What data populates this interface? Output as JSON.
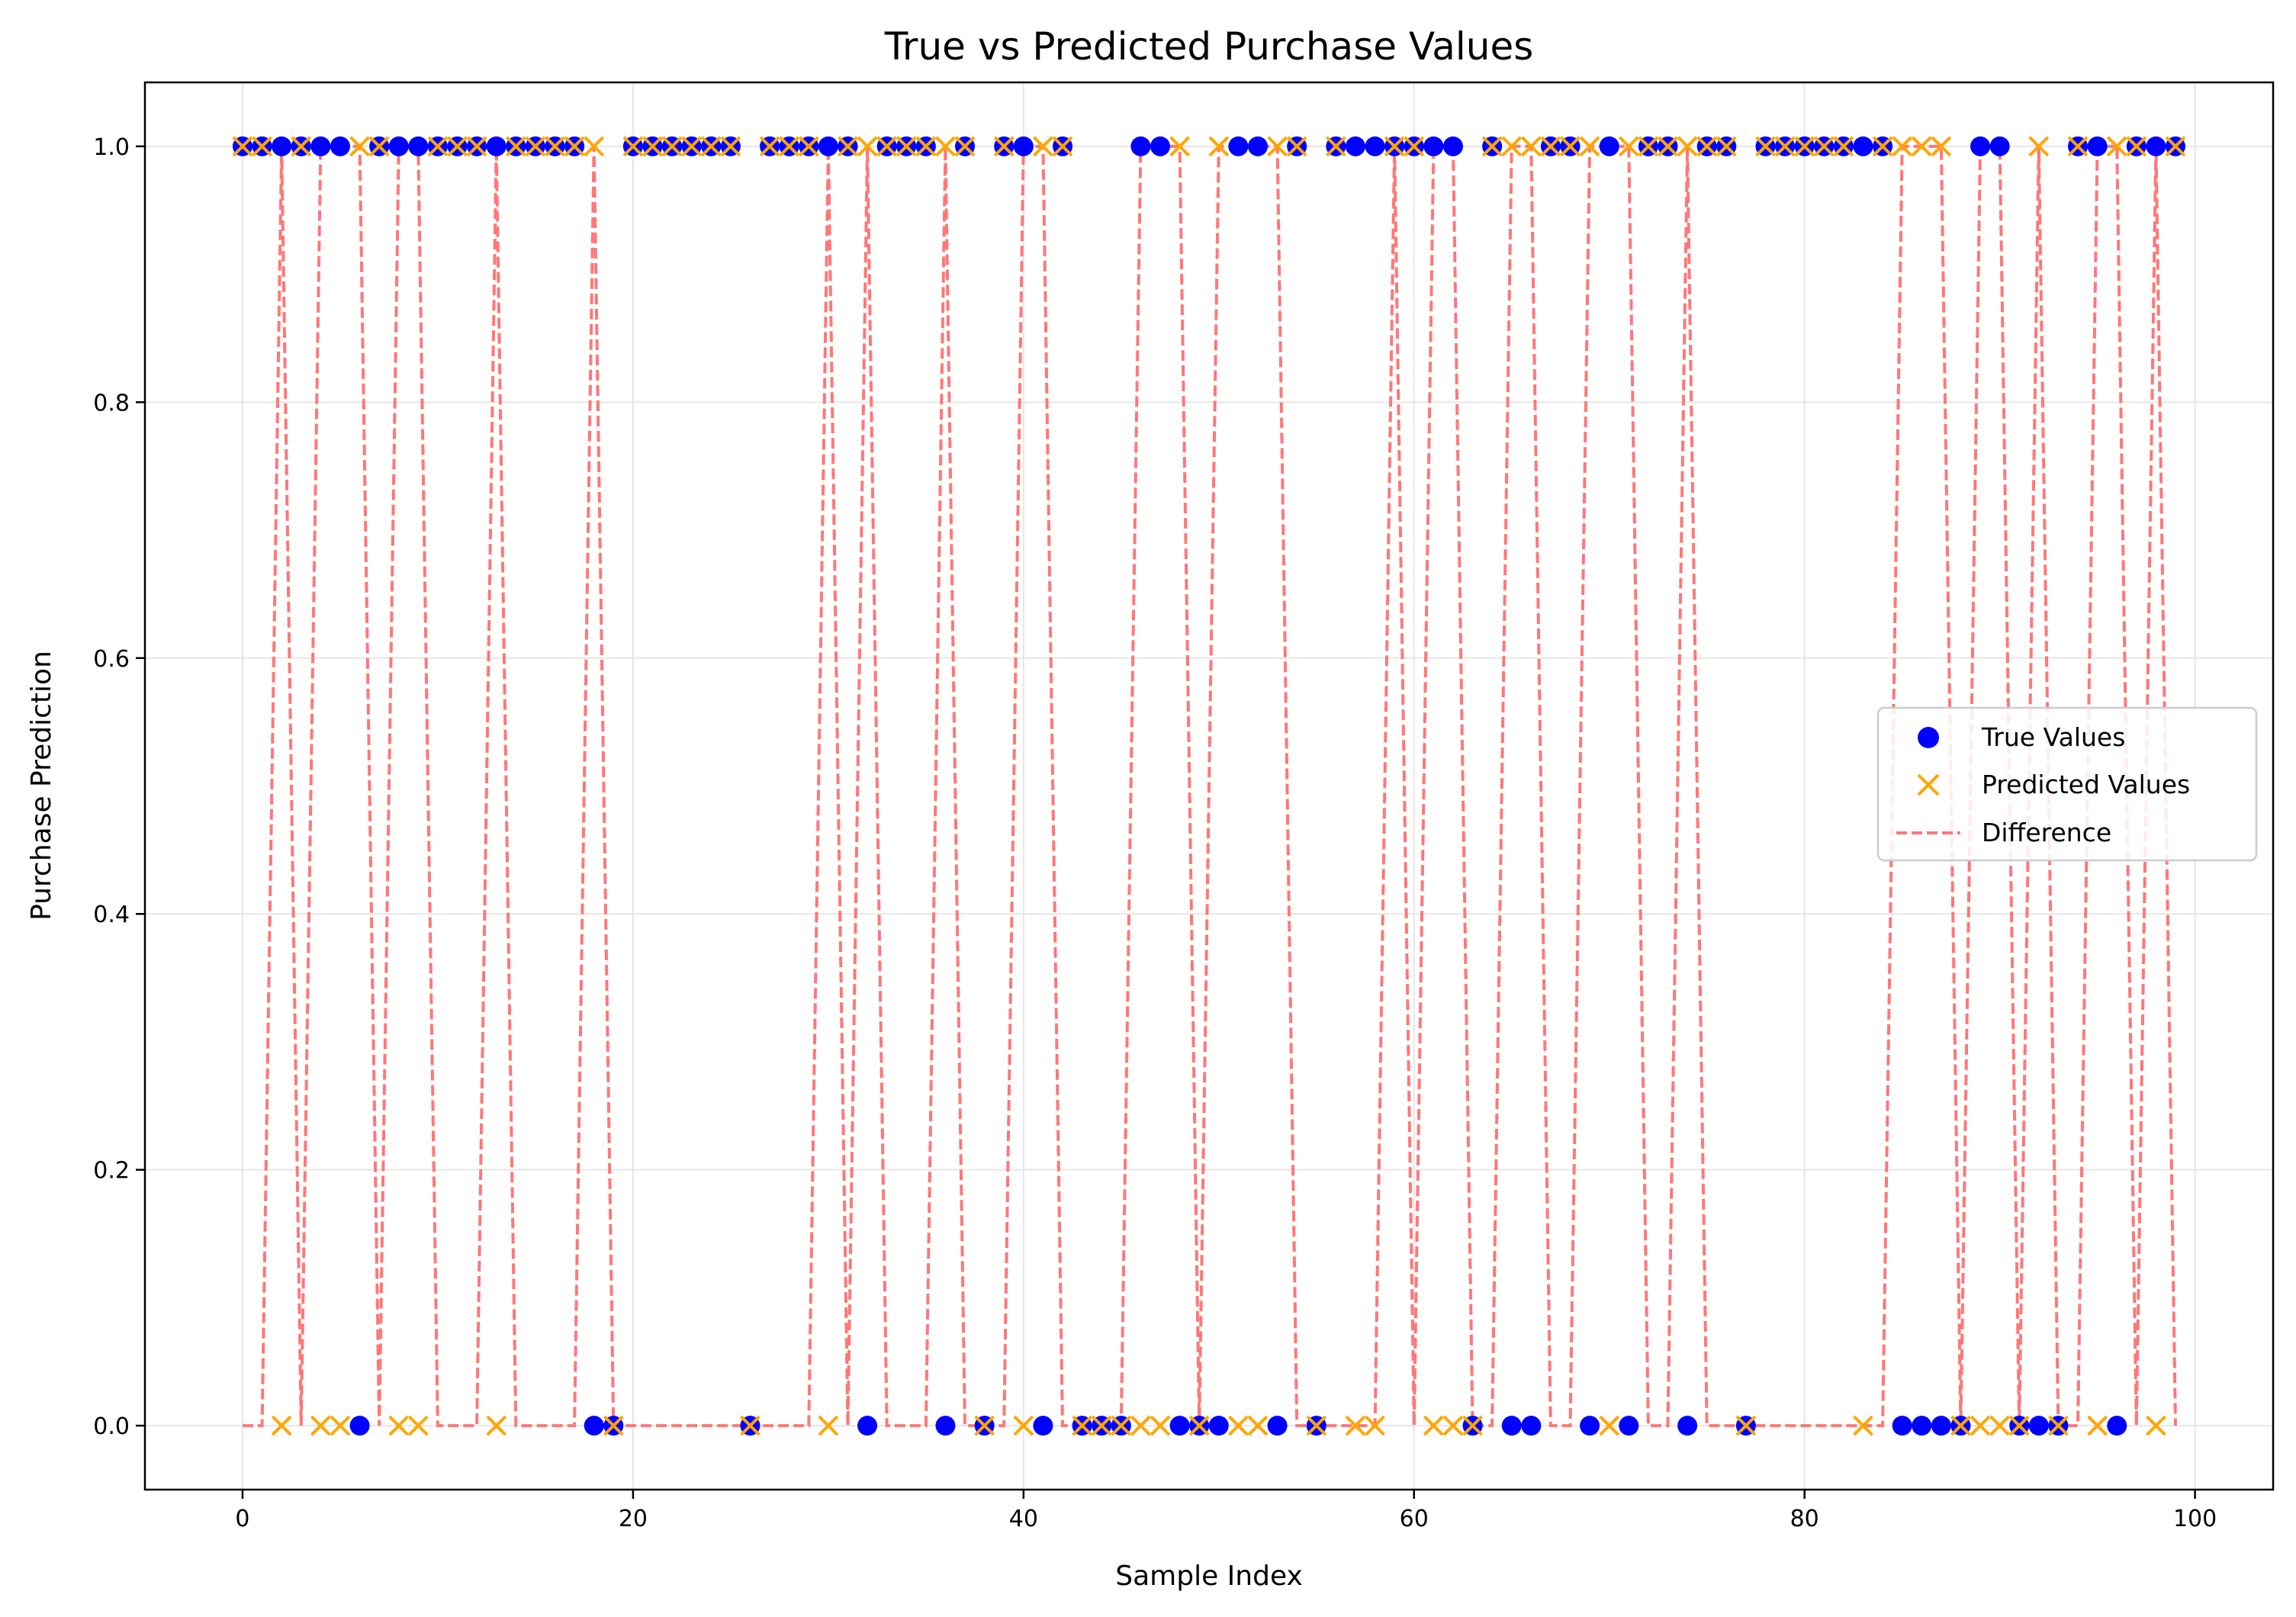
{
  "chart_data": {
    "type": "scatter",
    "title": "True vs Predicted Purchase Values",
    "xlabel": "Sample Index",
    "ylabel": "Purchase Prediction",
    "xlim": [
      -5,
      104
    ],
    "ylim": [
      -0.05,
      1.05
    ],
    "xticks": [
      0,
      20,
      40,
      60,
      80,
      100
    ],
    "yticks": [
      0.0,
      0.2,
      0.4,
      0.6,
      0.8,
      1.0
    ],
    "xtick_labels": [
      "0",
      "20",
      "40",
      "60",
      "80",
      "100"
    ],
    "ytick_labels": [
      "0.0",
      "0.2",
      "0.4",
      "0.6",
      "0.8",
      "1.0"
    ],
    "grid": true,
    "legend_position": "center-right",
    "series": [
      {
        "name": "True Values",
        "marker": "circle",
        "color": "#0000ff",
        "values": [
          1,
          1,
          1,
          1,
          1,
          1,
          0,
          1,
          1,
          1,
          1,
          1,
          1,
          1,
          1,
          1,
          1,
          1,
          0,
          0,
          1,
          1,
          1,
          1,
          1,
          1,
          0,
          1,
          1,
          1,
          1,
          1,
          0,
          1,
          1,
          1,
          0,
          1,
          0,
          1,
          1,
          0,
          1,
          0,
          0,
          0,
          1,
          1,
          0,
          0,
          0,
          1,
          1,
          0,
          1,
          0,
          1,
          1,
          1,
          1,
          1,
          1,
          1,
          0,
          1,
          0,
          0,
          1,
          1,
          0,
          1,
          0,
          1,
          1,
          0,
          1,
          1,
          0,
          1,
          1,
          1,
          1,
          1,
          1,
          1,
          0,
          0,
          0,
          0,
          1,
          1,
          0,
          0,
          0,
          1,
          1,
          0,
          1,
          1,
          1
        ]
      },
      {
        "name": "Predicted Values",
        "marker": "x",
        "color": "#ffa500",
        "values": [
          1,
          1,
          0,
          1,
          0,
          0,
          1,
          1,
          0,
          0,
          1,
          1,
          1,
          0,
          1,
          1,
          1,
          1,
          1,
          0,
          1,
          1,
          1,
          1,
          1,
          1,
          0,
          1,
          1,
          1,
          0,
          1,
          1,
          1,
          1,
          1,
          1,
          1,
          0,
          1,
          0,
          1,
          1,
          0,
          0,
          0,
          0,
          0,
          1,
          0,
          1,
          0,
          0,
          1,
          1,
          0,
          1,
          0,
          0,
          1,
          1,
          0,
          0,
          0,
          1,
          1,
          1,
          1,
          1,
          1,
          0,
          1,
          1,
          1,
          1,
          1,
          1,
          0,
          1,
          1,
          1,
          1,
          1,
          0,
          1,
          1,
          1,
          1,
          0,
          0,
          0,
          0,
          1,
          0,
          1,
          0,
          1,
          1,
          0,
          1
        ]
      },
      {
        "name": "Difference",
        "line": "dashed",
        "color": "#ff7777",
        "values": [
          0,
          0,
          1,
          0,
          1,
          1,
          1,
          0,
          1,
          1,
          0,
          0,
          0,
          1,
          0,
          0,
          0,
          0,
          1,
          0,
          0,
          0,
          0,
          0,
          0,
          0,
          0,
          0,
          0,
          0,
          1,
          0,
          1,
          0,
          0,
          0,
          1,
          0,
          0,
          0,
          1,
          1,
          0,
          0,
          0,
          0,
          1,
          1,
          1,
          0,
          1,
          1,
          1,
          1,
          0,
          0,
          0,
          0,
          0,
          1,
          0,
          1,
          1,
          0,
          0,
          1,
          1,
          0,
          0,
          1,
          1,
          1,
          0,
          0,
          1,
          0,
          0,
          0,
          0,
          0,
          0,
          0,
          0,
          0,
          0,
          1,
          1,
          1,
          0,
          1,
          1,
          0,
          1,
          0,
          0,
          1,
          1,
          0,
          1,
          0
        ]
      }
    ]
  },
  "colors": {
    "true_marker": "#0000ff",
    "pred_marker": "#ffa500",
    "diff_line": "#ff7777",
    "grid": "#e6e6e6"
  }
}
